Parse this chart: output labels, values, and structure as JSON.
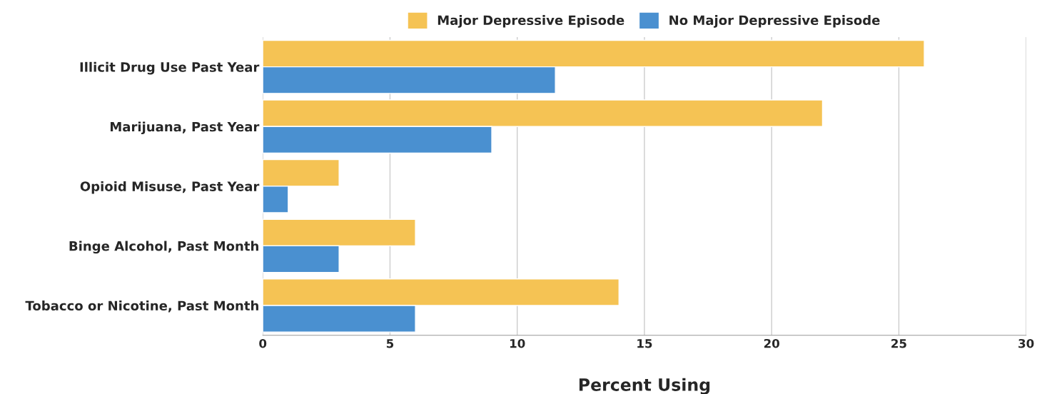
{
  "chart_data": {
    "type": "bar",
    "orientation": "horizontal",
    "xlabel": "Percent Using",
    "categories": [
      "Illicit Drug Use Past Year",
      "Marijuana, Past Year",
      "Opioid Misuse, Past Year",
      "Binge Alcohol, Past Month",
      "Tobacco or Nicotine, Past Month"
    ],
    "series": [
      {
        "name": "Major Depressive Episode",
        "color": "#f5c354",
        "values": [
          26,
          22,
          3,
          6,
          14
        ]
      },
      {
        "name": "No Major Depressive Episode",
        "color": "#4a90d0",
        "values": [
          11.5,
          9,
          1,
          3,
          6
        ]
      }
    ],
    "xlim": [
      0,
      30
    ],
    "xticks": [
      0,
      5,
      10,
      15,
      20,
      25,
      30
    ],
    "grid": "x",
    "legend": "top"
  }
}
